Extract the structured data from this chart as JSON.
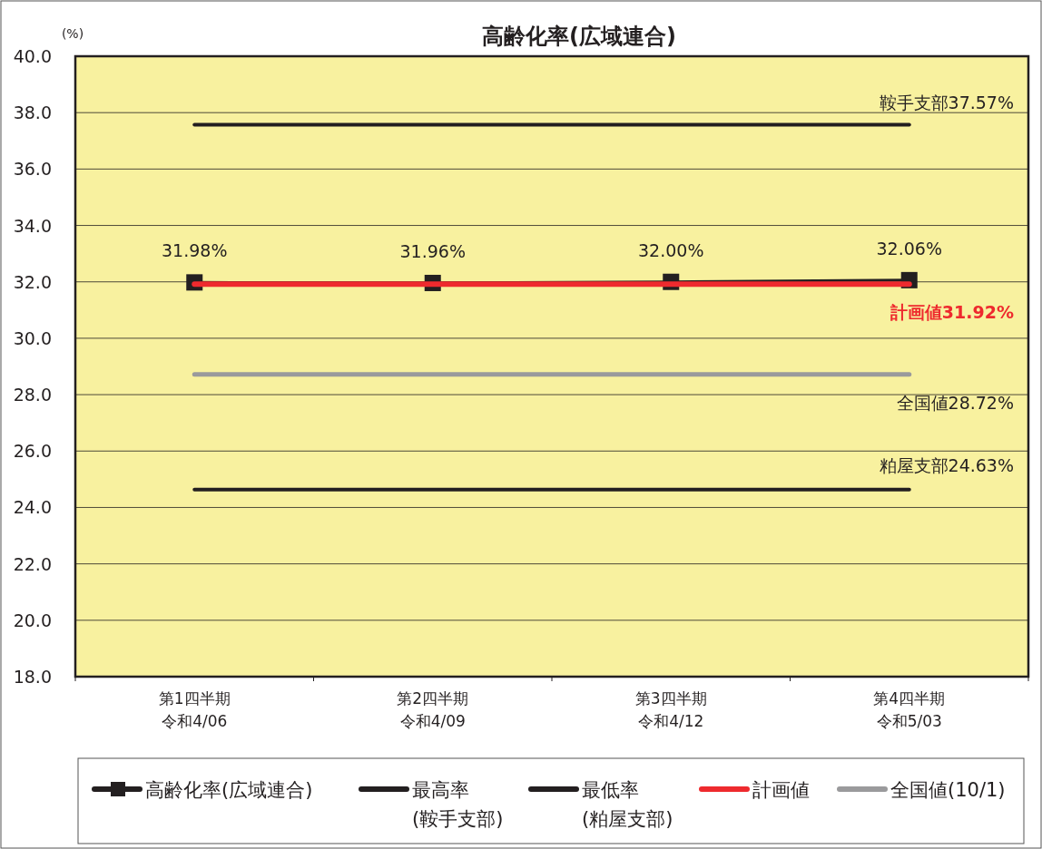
{
  "chart_data": {
    "type": "line",
    "title": "高齢化率(広域連合)",
    "ylabel": "(%)",
    "categories": [
      "第1四半期令和4/06",
      "第2四半期令和4/09",
      "第3四半期令和4/12",
      "第4四半期令和5/03"
    ],
    "series": [
      {
        "name": "高齢化率(広域連合)",
        "color": "#231f20",
        "values": [
          31.98,
          31.96,
          32.0,
          32.06
        ],
        "marker": "square",
        "value_labels": [
          "31.98%",
          "31.96%",
          "32.00%",
          "32.06%"
        ]
      },
      {
        "name": "最高率\n(鞍手支部)",
        "color": "#231f20",
        "values": [
          37.57,
          37.57,
          37.57,
          37.57
        ],
        "marker": "none"
      },
      {
        "name": "最低率\n(粕屋支部)",
        "color": "#231f20",
        "values": [
          24.63,
          24.63,
          24.63,
          24.63
        ],
        "marker": "none"
      },
      {
        "name": "計画値",
        "color": "#ee2a2e",
        "values": [
          31.92,
          31.92,
          31.92,
          31.92
        ],
        "marker": "none"
      },
      {
        "name": "全国値(10/1)",
        "color": "#9a9a9c",
        "values": [
          28.72,
          28.72,
          28.72,
          28.72
        ],
        "marker": "none"
      }
    ],
    "annotations": [
      {
        "text": "鞍手支部37.57%",
        "x": "第4四半期令和5/03",
        "y": 37.57
      },
      {
        "text": "計画値31.92%",
        "x": "第4四半期令和5/03",
        "y": 31.92
      },
      {
        "text": "全国値28.72%",
        "x": "第4四半期令和5/03",
        "y": 28.72
      },
      {
        "text": "粕屋支部24.63%",
        "x": "第4四半期令和5/03",
        "y": 24.63
      }
    ],
    "ylim": [
      18,
      40
    ],
    "yticks": [
      {
        "value": 18,
        "label": "18.0"
      },
      {
        "value": 20,
        "label": "20.0"
      },
      {
        "value": 22,
        "label": "22.0"
      },
      {
        "value": 24,
        "label": "24.0"
      },
      {
        "value": 26,
        "label": "26.0"
      },
      {
        "value": 28,
        "label": "28.0"
      },
      {
        "value": 30,
        "label": "30.0"
      },
      {
        "value": 32,
        "label": "32.0"
      },
      {
        "value": 34,
        "label": "34.0"
      },
      {
        "value": 36,
        "label": "36.0"
      },
      {
        "value": 38,
        "label": "38.0"
      },
      {
        "value": 40,
        "label": "40.0"
      }
    ],
    "grid": "y",
    "legend": "bottom",
    "line_style": "solid"
  }
}
